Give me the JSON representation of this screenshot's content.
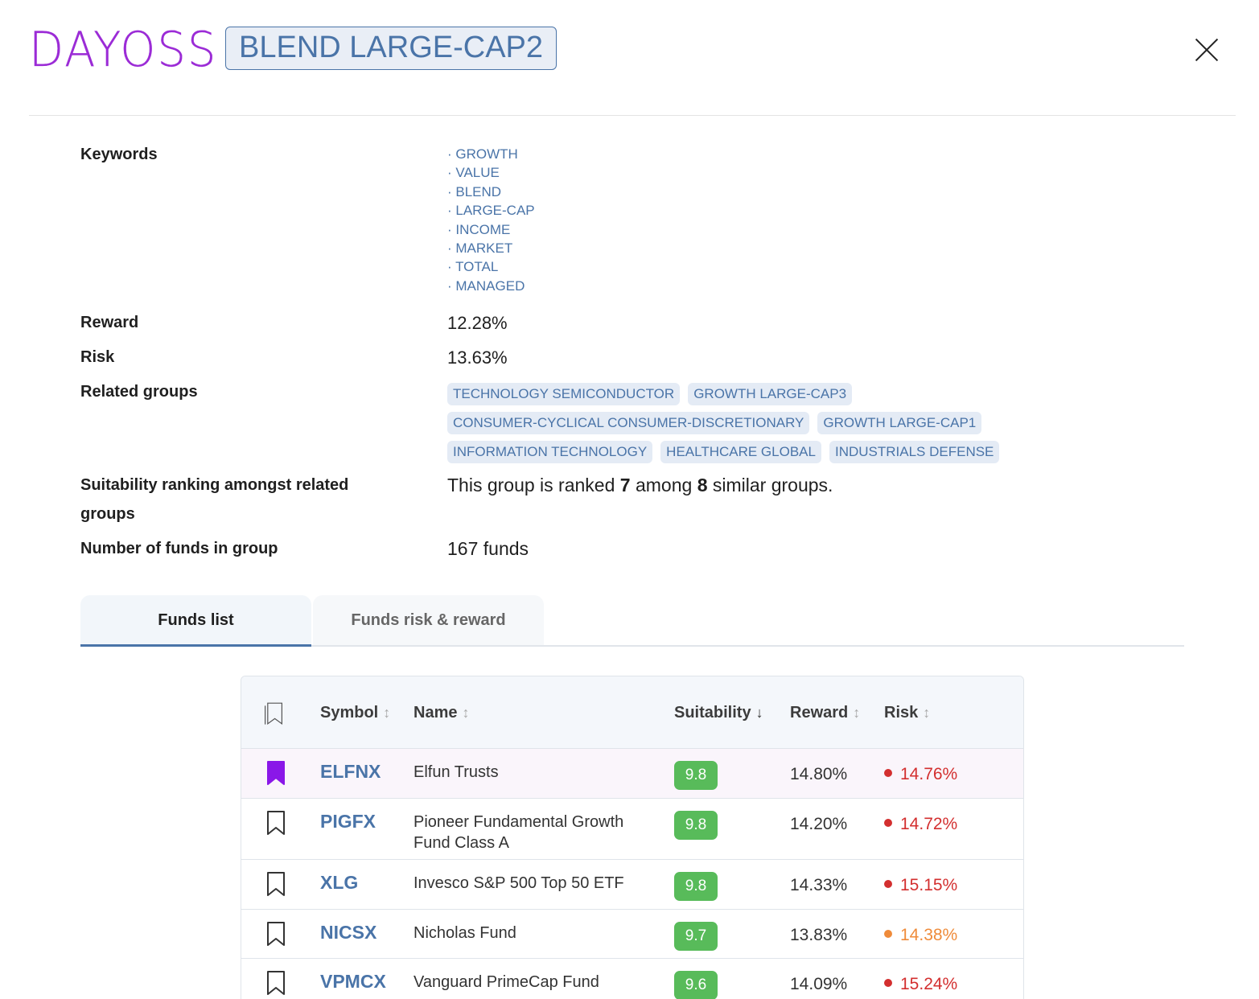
{
  "app": {
    "logo": "DAYOSS"
  },
  "group": {
    "title": "BLEND LARGE-CAP2"
  },
  "labels": {
    "keywords": "Keywords",
    "reward": "Reward",
    "risk": "Risk",
    "related": "Related groups",
    "suitability": "Suitability ranking amongst related groups",
    "num_funds": "Number of funds in group"
  },
  "keywords": [
    "GROWTH",
    "VALUE",
    "BLEND",
    "LARGE-CAP",
    "INCOME",
    "MARKET",
    "TOTAL",
    "MANAGED"
  ],
  "reward": "12.28%",
  "risk": "13.63%",
  "related_groups": [
    [
      "TECHNOLOGY SEMICONDUCTOR",
      "GROWTH LARGE-CAP3"
    ],
    [
      "CONSUMER-CYCLICAL CONSUMER-DISCRETIONARY",
      "GROWTH LARGE-CAP1"
    ],
    [
      "INFORMATION TECHNOLOGY",
      "HEALTHCARE GLOBAL",
      "INDUSTRIALS DEFENSE"
    ]
  ],
  "ranking": {
    "prefix": "This group is ranked",
    "rank": "7",
    "middle": "among",
    "total": "8",
    "suffix": "similar groups."
  },
  "num_funds": "167 funds",
  "tabs": [
    "Funds list",
    "Funds risk & reward"
  ],
  "table": {
    "columns": {
      "symbol": "Symbol",
      "name": "Name",
      "suitability": "Suitability",
      "reward": "Reward",
      "risk": "Risk"
    },
    "sort_icons": {
      "inactive": "↕",
      "active": "↓"
    },
    "rows": [
      {
        "symbol": "ELFNX",
        "name": "Elfun Trusts",
        "suitability": "9.8",
        "reward": "14.80%",
        "risk": "14.76%",
        "risk_color": "#d32f2f",
        "bookmarked": true
      },
      {
        "symbol": "PIGFX",
        "name": "Pioneer Fundamental Growth Fund Class A",
        "suitability": "9.8",
        "reward": "14.20%",
        "risk": "14.72%",
        "risk_color": "#d32f2f",
        "bookmarked": false
      },
      {
        "symbol": "XLG",
        "name": "Invesco S&P 500 Top 50 ETF",
        "suitability": "9.8",
        "reward": "14.33%",
        "risk": "15.15%",
        "risk_color": "#d32f2f",
        "bookmarked": false
      },
      {
        "symbol": "NICSX",
        "name": "Nicholas Fund",
        "suitability": "9.7",
        "reward": "13.83%",
        "risk": "14.38%",
        "risk_color": "#ef8b3a",
        "bookmarked": false
      },
      {
        "symbol": "VPMCX",
        "name": "Vanguard PrimeCap Fund",
        "suitability": "9.6",
        "reward": "14.09%",
        "risk": "15.24%",
        "risk_color": "#d32f2f",
        "bookmarked": false
      }
    ]
  },
  "colors": {
    "accent": "#4a74a8",
    "brand": "#9b2bd6",
    "score_bg": "#58bb5a",
    "bookmark_active": "#8a17e8"
  }
}
